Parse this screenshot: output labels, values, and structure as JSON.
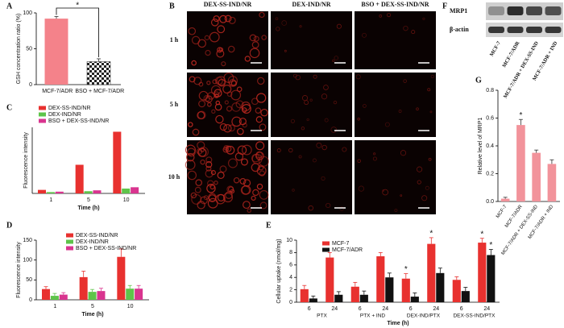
{
  "chart_data": [
    {
      "panel": "A",
      "type": "bar",
      "ylabel": "GSH concentration ratio (%)",
      "categories": [
        "MCF-7/ADR",
        "BSO + MCF-7/ADR"
      ],
      "values": [
        92,
        32
      ],
      "errors": [
        3,
        4
      ],
      "colors": [
        "#f4828a",
        "#222222"
      ],
      "hatch": [
        false,
        true
      ],
      "ylim": [
        0,
        100
      ],
      "yticks": [
        0,
        50,
        100
      ],
      "annotation": "*"
    },
    {
      "panel": "C",
      "type": "bar",
      "ylabel": "Fluorescence intensity",
      "xlabel": "Time (h)",
      "categories": [
        "1",
        "5",
        "10"
      ],
      "series": [
        {
          "name": "DEX-SS-IND/NR",
          "color": "#e8312f",
          "values": [
            0.8,
            6.5,
            14
          ]
        },
        {
          "name": "DEX-IND/NR",
          "color": "#5ec44a",
          "values": [
            0.3,
            0.5,
            1.1
          ]
        },
        {
          "name": "BSO + DEX-SS-IND/NR",
          "color": "#d9348f",
          "values": [
            0.4,
            0.7,
            1.4
          ]
        }
      ],
      "ylim": [
        0,
        15
      ]
    },
    {
      "panel": "D",
      "type": "bar",
      "ylabel": "Fluorescence intensity",
      "xlabel": "Time (h)",
      "categories": [
        "1",
        "5",
        "10"
      ],
      "series": [
        {
          "name": "DEX-SS-IND/NR",
          "color": "#e8312f",
          "values": [
            27,
            57,
            108
          ],
          "errors": [
            6,
            15,
            20
          ]
        },
        {
          "name": "DEX-IND/NR",
          "color": "#5ec44a",
          "values": [
            10,
            20,
            28
          ],
          "errors": [
            6,
            6,
            8
          ]
        },
        {
          "name": "BSO + DEX-SS-IND/NR",
          "color": "#d9348f",
          "values": [
            13,
            22,
            28
          ],
          "errors": [
            5,
            7,
            8
          ]
        }
      ],
      "ylim": [
        0,
        150
      ],
      "yticks": [
        0,
        50,
        100,
        150
      ]
    },
    {
      "panel": "E",
      "type": "bar",
      "ylabel": "Cellular uptake (nmol/mg)",
      "xlabel": "Time (h)",
      "categories": [
        "6",
        "24",
        "6",
        "24",
        "6",
        "24",
        "6",
        "24"
      ],
      "groups": [
        "PTX",
        "PTX + IND",
        "DEX-IND/PTX",
        "DEX-SS-IND/PTX"
      ],
      "series": [
        {
          "name": "MCF-7",
          "color": "#e8312f",
          "values": [
            2.1,
            7.2,
            2.5,
            7.4,
            3.8,
            9.4,
            3.6,
            9.6
          ],
          "errors": [
            0.6,
            0.8,
            0.7,
            0.6,
            0.8,
            1.0,
            0.5,
            0.7
          ],
          "annotations": [
            null,
            null,
            null,
            null,
            "*",
            "*",
            null,
            "*"
          ]
        },
        {
          "name": "MCF-7/ADR",
          "color": "#111111",
          "values": [
            0.6,
            1.2,
            1.2,
            4.0,
            0.9,
            4.7,
            1.8,
            7.6
          ],
          "errors": [
            0.4,
            0.5,
            0.6,
            0.7,
            0.6,
            0.8,
            0.6,
            0.9
          ],
          "annotations": [
            null,
            null,
            null,
            null,
            null,
            null,
            null,
            "*"
          ]
        }
      ],
      "ylim": [
        0,
        10
      ],
      "yticks": [
        0,
        2,
        4,
        6,
        8,
        10
      ]
    },
    {
      "panel": "G",
      "type": "bar",
      "ylabel": "Relative level of MRP1",
      "categories": [
        "MCF-7",
        "MCF-7/ADR",
        "MCF-7/ADR + DEX-SS-IND",
        "MCF-7/ADR + IND"
      ],
      "values": [
        0.02,
        0.55,
        0.35,
        0.27
      ],
      "errors": [
        0.01,
        0.04,
        0.02,
        0.03
      ],
      "colors": [
        "#f2939b",
        "#f2939b",
        "#f2939b",
        "#f2939b"
      ],
      "annotations": [
        null,
        "*",
        null,
        null
      ],
      "ylim": [
        0,
        0.8
      ],
      "yticks": [
        {
          "value": 0,
          "label": "0.0"
        },
        {
          "value": 0.2,
          "label": "0.2"
        },
        {
          "value": 0.4,
          "label": "0.4"
        },
        {
          "value": 0.6,
          "label": "0.6"
        },
        {
          "value": 0.8,
          "label": "0.8"
        }
      ]
    }
  ],
  "microscopy": {
    "panel": "B",
    "columns": [
      "DEX-SS-IND/NR",
      "DEX-IND/NR",
      "BSO + DEX-SS-IND/NR"
    ],
    "rows": [
      "1 h",
      "5 h",
      "10 h"
    ]
  },
  "western_blot": {
    "panel": "F",
    "proteins": [
      "MRP1",
      "β-actin"
    ],
    "lanes": [
      "MCF-7",
      "MCF-7/ADR",
      "MCF-7/ADR + DEX-SS-IND",
      "MCF-7/ADR + IND"
    ]
  }
}
